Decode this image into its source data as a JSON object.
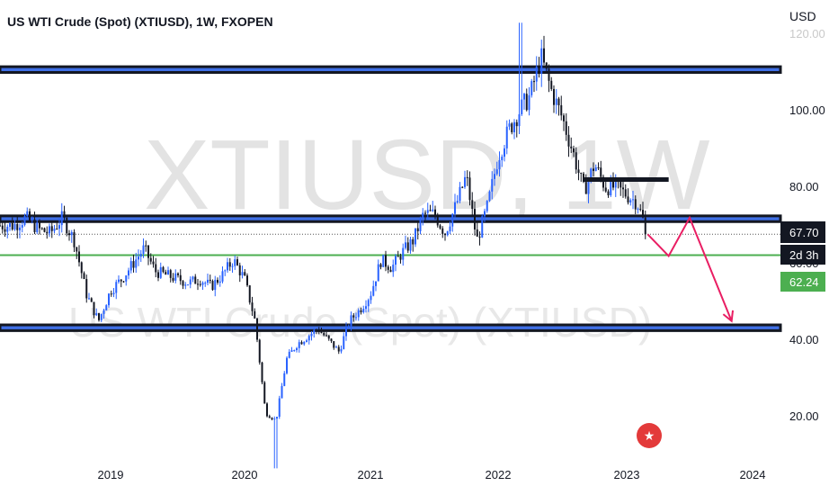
{
  "header": {
    "title": "US WTI Crude (Spot) (XTIUSD), 1W, FXOPEN",
    "currency": "USD",
    "watermark_big": "XTIUSD, 1W",
    "watermark_small": "US WTI Crude (Spot) (XTIUSD)"
  },
  "badges": {
    "last_price": "67.70",
    "countdown": "2d 3h",
    "green_line_price": "62.24"
  },
  "colors": {
    "zone_blue": "#3f6fe6",
    "zone_border": "#131722",
    "candle_up": "#2962ff",
    "candle_down": "#131722",
    "green_line": "#4caf50",
    "arrow": "#e91e63",
    "badge_dark": "#131722",
    "badge_green": "#4caf50"
  },
  "chart_data": {
    "type": "candlestick",
    "title": "US WTI Crude (Spot) (XTIUSD), 1W, FXOPEN",
    "y_axis": {
      "unit": "USD",
      "ticks": [
        20,
        40,
        60,
        80,
        100,
        120
      ],
      "ylim": [
        10,
        124
      ]
    },
    "x_axis": {
      "ticks": [
        "2019",
        "2020",
        "2021",
        "2022",
        "2023",
        "2024"
      ]
    },
    "close_path": [
      [
        "2018-05",
        70
      ],
      [
        "2018-06",
        72
      ],
      [
        "2018-07",
        69
      ],
      [
        "2018-08",
        68
      ],
      [
        "2018-09",
        72
      ],
      [
        "2018-10",
        66
      ],
      [
        "2018-11",
        52
      ],
      [
        "2018-12",
        45
      ],
      [
        "2019-01",
        53
      ],
      [
        "2019-02",
        56
      ],
      [
        "2019-03",
        60
      ],
      [
        "2019-04",
        64
      ],
      [
        "2019-05",
        58
      ],
      [
        "2019-06",
        57
      ],
      [
        "2019-07",
        56
      ],
      [
        "2019-08",
        55
      ],
      [
        "2019-09",
        56
      ],
      [
        "2019-10",
        54
      ],
      [
        "2019-11",
        57
      ],
      [
        "2019-12",
        61
      ],
      [
        "2020-01",
        56
      ],
      [
        "2020-02",
        45
      ],
      [
        "2020-03",
        21
      ],
      [
        "2020-04",
        19
      ],
      [
        "2020-05",
        35
      ],
      [
        "2020-06",
        39
      ],
      [
        "2020-07",
        41
      ],
      [
        "2020-08",
        43
      ],
      [
        "2020-09",
        40
      ],
      [
        "2020-10",
        37
      ],
      [
        "2020-11",
        45
      ],
      [
        "2020-12",
        48
      ],
      [
        "2021-01",
        52
      ],
      [
        "2021-02",
        61
      ],
      [
        "2021-03",
        59
      ],
      [
        "2021-04",
        63
      ],
      [
        "2021-05",
        66
      ],
      [
        "2021-06",
        73
      ],
      [
        "2021-07",
        73
      ],
      [
        "2021-08",
        68
      ],
      [
        "2021-09",
        75
      ],
      [
        "2021-10",
        83
      ],
      [
        "2021-11",
        66
      ],
      [
        "2021-12",
        75
      ],
      [
        "2022-01",
        88
      ],
      [
        "2022-02",
        95
      ],
      [
        "2022-03",
        100
      ],
      [
        "2022-04",
        104
      ],
      [
        "2022-05",
        114
      ],
      [
        "2022-06",
        105
      ],
      [
        "2022-07",
        98
      ],
      [
        "2022-08",
        89
      ],
      [
        "2022-09",
        79
      ],
      [
        "2022-10",
        86
      ],
      [
        "2022-11",
        80
      ],
      [
        "2022-12",
        80
      ],
      [
        "2023-01",
        78
      ],
      [
        "2023-02",
        76
      ],
      [
        "2023-03",
        67.7
      ]
    ],
    "extremes": {
      "high": {
        "date": "2022-03",
        "value": 123
      },
      "low": {
        "date": "2020-04",
        "value": 6.5
      }
    },
    "annotations": {
      "zones": [
        [
          110,
          111.5
        ],
        [
          71,
          72.5
        ],
        [
          42.5,
          44
        ]
      ],
      "horizontal_lines": [
        {
          "value": 62.24,
          "color": "green"
        }
      ],
      "resistance_segment": {
        "value": 82,
        "from": "2022-09",
        "to": "2023-05"
      },
      "projection_arrow": [
        [
          "2023-03",
          67.7
        ],
        [
          "2023-05",
          62
        ],
        [
          "2023-07",
          72
        ],
        [
          "2023-11",
          45
        ]
      ]
    },
    "last_price": 67.7,
    "grid": false
  }
}
